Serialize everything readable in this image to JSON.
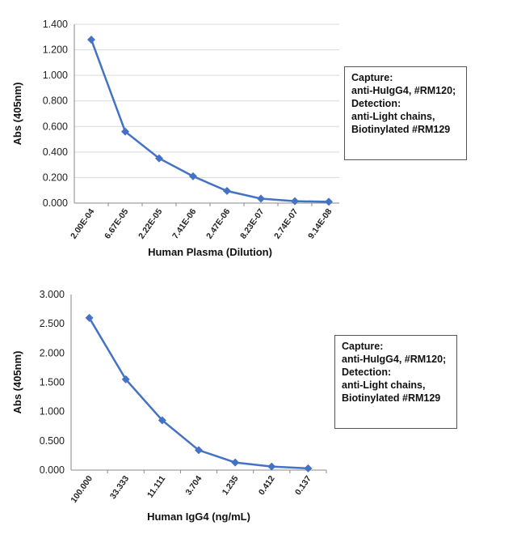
{
  "chart_data": [
    {
      "type": "line",
      "xlabel": "Human Plasma (Dilution)",
      "ylabel": "Abs (405nm)",
      "categories": [
        "2.00E-04",
        "6.67E-05",
        "2.22E-05",
        "7.41E-06",
        "2.47E-06",
        "8.23E-07",
        "2.74E-07",
        "9.14E-08"
      ],
      "series": [
        {
          "values": [
            1.28,
            0.56,
            0.35,
            0.21,
            0.095,
            0.035,
            0.015,
            0.01
          ]
        }
      ],
      "ylim": [
        0,
        1.4
      ],
      "yticks": [
        "0.000",
        "0.200",
        "0.400",
        "0.600",
        "0.800",
        "1.000",
        "1.200",
        "1.400"
      ],
      "grid": true,
      "color": "#4472C4",
      "marker": "diamond",
      "legend": [
        "Capture:",
        "anti-HuIgG4, #RM120;",
        "Detection:",
        "anti-Light chains,",
        "Biotinylated #RM129"
      ]
    },
    {
      "type": "line",
      "xlabel": "Human IgG4 (ng/mL)",
      "ylabel": "Abs (405nm)",
      "categories": [
        "100.000",
        "33.333",
        "11.111",
        "3.704",
        "1.235",
        "0.412",
        "0.137"
      ],
      "series": [
        {
          "values": [
            2.6,
            1.55,
            0.85,
            0.34,
            0.13,
            0.06,
            0.03
          ]
        }
      ],
      "ylim": [
        0,
        3.0
      ],
      "yticks": [
        "0.000",
        "0.500",
        "1.000",
        "1.500",
        "2.000",
        "2.500",
        "3.000"
      ],
      "grid": false,
      "color": "#4472C4",
      "marker": "diamond",
      "legend": [
        "Capture:",
        "anti-HuIgG4, #RM120;",
        "Detection:",
        "anti-Light chains,",
        "Biotinylated #RM129"
      ]
    }
  ]
}
